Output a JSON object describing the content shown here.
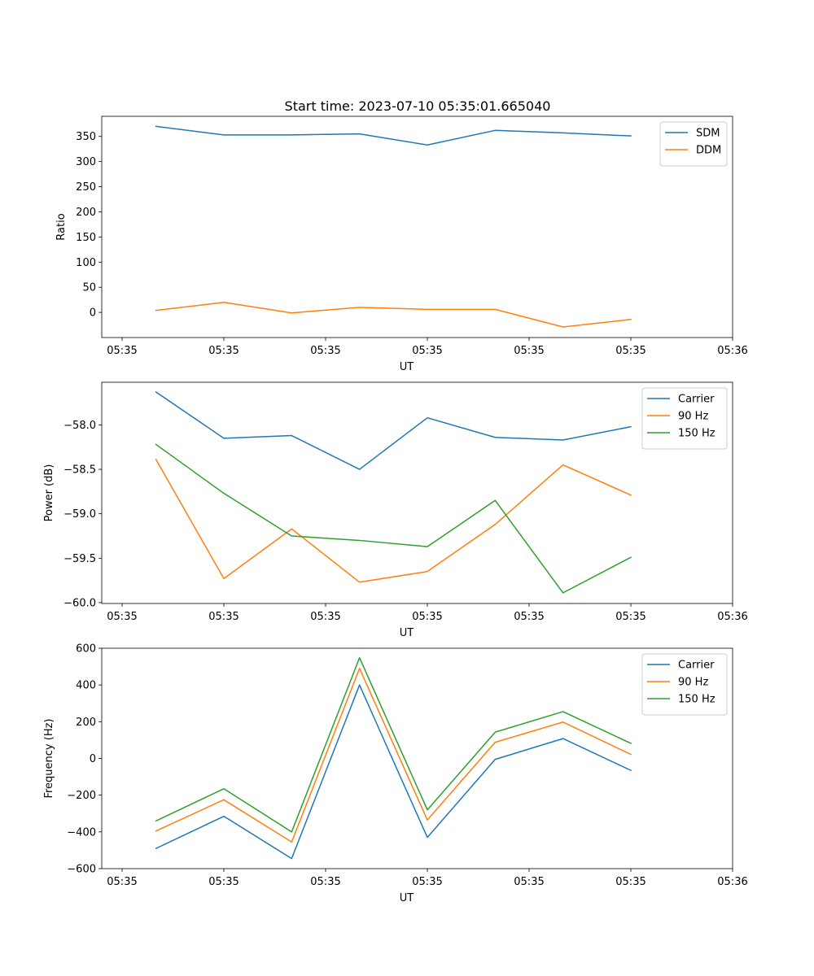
{
  "figure_title": "Start time: 2023-07-10 05:35:01.665040",
  "colors": {
    "blue": "#1f77b4",
    "orange": "#ff7f0e",
    "green": "#2ca02c",
    "axis": "#000000",
    "legend_border": "#cccccc"
  },
  "chart_data": [
    {
      "type": "line",
      "title": "Start time: 2023-07-10 05:35:01.665040",
      "xlabel": "UT",
      "ylabel": "Ratio",
      "x": [
        1,
        2,
        3,
        4,
        5,
        6,
        7,
        8
      ],
      "xlim": [
        0.2,
        9.5
      ],
      "x_ticks": [
        0.5,
        2,
        3.5,
        5,
        6.5,
        8,
        9.5
      ],
      "x_tick_labels": [
        "05:35",
        "05:35",
        "05:35",
        "05:35",
        "05:35",
        "05:35",
        "05:36"
      ],
      "ylim": [
        -50,
        390
      ],
      "y_ticks": [
        0,
        50,
        100,
        150,
        200,
        250,
        300,
        350
      ],
      "y_tick_labels": [
        "0",
        "50",
        "100",
        "150",
        "200",
        "250",
        "300",
        "350"
      ],
      "legend_position": "top-right",
      "series": [
        {
          "name": "SDM",
          "color": "blue",
          "values": [
            370,
            353,
            353,
            355,
            333,
            362,
            357,
            351
          ]
        },
        {
          "name": "DDM",
          "color": "orange",
          "values": [
            4,
            20,
            -1,
            10,
            6,
            6,
            -29,
            -14
          ]
        }
      ]
    },
    {
      "type": "line",
      "title": "",
      "xlabel": "UT",
      "ylabel": "Power (dB)",
      "x": [
        1,
        2,
        3,
        4,
        5,
        6,
        7,
        8
      ],
      "xlim": [
        0.2,
        9.5
      ],
      "x_ticks": [
        0.5,
        2,
        3.5,
        5,
        6.5,
        8,
        9.5
      ],
      "x_tick_labels": [
        "05:35",
        "05:35",
        "05:35",
        "05:35",
        "05:35",
        "05:35",
        "05:36"
      ],
      "ylim": [
        -60.01,
        -57.52
      ],
      "y_ticks": [
        -60.0,
        -59.5,
        -59.0,
        -58.5,
        -58.0
      ],
      "y_tick_labels": [
        "−60.0",
        "−59.5",
        "−59.0",
        "−58.5",
        "−58.0"
      ],
      "legend_position": "top-right",
      "series": [
        {
          "name": "Carrier",
          "color": "blue",
          "values": [
            -57.63,
            -58.15,
            -58.12,
            -58.5,
            -57.92,
            -58.14,
            -58.17,
            -58.02
          ]
        },
        {
          "name": "90 Hz",
          "color": "orange",
          "values": [
            -58.39,
            -59.73,
            -59.17,
            -59.77,
            -59.65,
            -59.12,
            -58.45,
            -58.79
          ]
        },
        {
          "name": "150 Hz",
          "color": "green",
          "values": [
            -58.22,
            -58.77,
            -59.25,
            -59.3,
            -59.37,
            -58.85,
            -59.89,
            -59.49
          ]
        }
      ]
    },
    {
      "type": "line",
      "title": "",
      "xlabel": "UT",
      "ylabel": "Frequency (Hz)",
      "x": [
        1,
        2,
        3,
        4,
        5,
        6,
        7,
        8
      ],
      "xlim": [
        0.2,
        9.5
      ],
      "x_ticks": [
        0.5,
        2,
        3.5,
        5,
        6.5,
        8,
        9.5
      ],
      "x_tick_labels": [
        "05:35",
        "05:35",
        "05:35",
        "05:35",
        "05:35",
        "05:35",
        "05:36"
      ],
      "ylim": [
        -600,
        600
      ],
      "y_ticks": [
        -600,
        -400,
        -200,
        0,
        200,
        400,
        600
      ],
      "y_tick_labels": [
        "−600",
        "−400",
        "−200",
        "0",
        "200",
        "400",
        "600"
      ],
      "legend_position": "top-right",
      "series": [
        {
          "name": "Carrier",
          "color": "blue",
          "values": [
            -490,
            -315,
            -545,
            400,
            -430,
            -5,
            108,
            -65
          ]
        },
        {
          "name": "90 Hz",
          "color": "orange",
          "values": [
            -395,
            -225,
            -455,
            490,
            -335,
            88,
            198,
            22
          ]
        },
        {
          "name": "150 Hz",
          "color": "green",
          "values": [
            -340,
            -165,
            -400,
            548,
            -280,
            143,
            255,
            82
          ]
        }
      ]
    }
  ]
}
